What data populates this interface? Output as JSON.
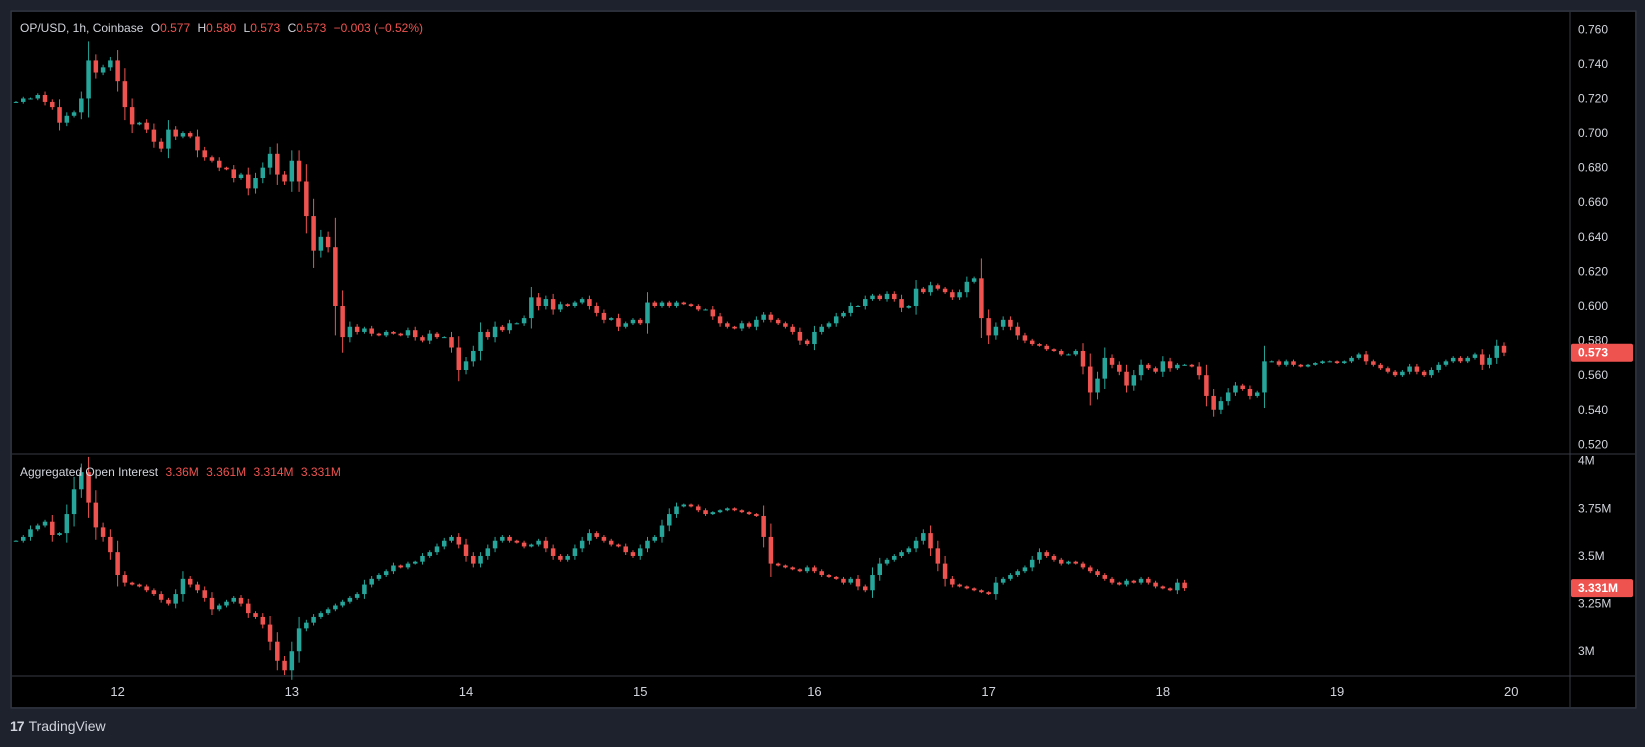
{
  "colors": {
    "up": "#26a69a",
    "down": "#ef5350",
    "text": "#d1d4dc",
    "bg": "#000000",
    "frame": "#1e222d",
    "grid": "#2a2e39"
  },
  "header": {
    "symbol": "OP/USD, 1h, Coinbase",
    "o_label": "O",
    "o_val": "0.577",
    "h_label": "H",
    "h_val": "0.580",
    "l_label": "L",
    "l_val": "0.573",
    "c_label": "C",
    "c_val": "0.573",
    "change": "−0.003 (−0.52%)"
  },
  "oi_header": {
    "title": "Aggregated Open Interest",
    "v1": "3.36M",
    "v2": "3.361M",
    "v3": "3.314M",
    "v4": "3.331M"
  },
  "brand": {
    "logo": "17",
    "name": "TradingView"
  },
  "chart_data": [
    {
      "type": "candlestick",
      "title": "OP/USD, 1h, Coinbase",
      "ylim": [
        0.515,
        0.77
      ],
      "y_ticks": [
        "0.760",
        "0.740",
        "0.720",
        "0.700",
        "0.680",
        "0.660",
        "0.640",
        "0.620",
        "0.600",
        "0.580",
        "0.560",
        "0.540",
        "0.520"
      ],
      "last_price_label": "0.573",
      "last_price": 0.573,
      "x_ticks": [
        "12",
        "13",
        "14",
        "15",
        "16",
        "17",
        "18",
        "19",
        "20"
      ],
      "close": [
        0.718,
        0.72,
        0.72,
        0.722,
        0.718,
        0.715,
        0.706,
        0.71,
        0.712,
        0.72,
        0.742,
        0.735,
        0.738,
        0.742,
        0.73,
        0.715,
        0.705,
        0.706,
        0.702,
        0.695,
        0.691,
        0.702,
        0.698,
        0.7,
        0.698,
        0.69,
        0.686,
        0.684,
        0.68,
        0.679,
        0.674,
        0.676,
        0.668,
        0.674,
        0.68,
        0.688,
        0.676,
        0.672,
        0.684,
        0.672,
        0.652,
        0.632,
        0.64,
        0.634,
        0.6,
        0.582,
        0.588,
        0.585,
        0.587,
        0.584,
        0.583,
        0.585,
        0.584,
        0.583,
        0.586,
        0.582,
        0.58,
        0.584,
        0.582,
        0.582,
        0.576,
        0.563,
        0.568,
        0.574,
        0.585,
        0.582,
        0.588,
        0.586,
        0.59,
        0.59,
        0.593,
        0.605,
        0.6,
        0.604,
        0.598,
        0.601,
        0.6,
        0.602,
        0.604,
        0.6,
        0.596,
        0.592,
        0.593,
        0.588,
        0.59,
        0.592,
        0.59,
        0.602,
        0.6,
        0.602,
        0.6,
        0.602,
        0.601,
        0.6,
        0.598,
        0.598,
        0.594,
        0.59,
        0.588,
        0.587,
        0.59,
        0.588,
        0.592,
        0.595,
        0.592,
        0.59,
        0.588,
        0.585,
        0.58,
        0.578,
        0.585,
        0.588,
        0.59,
        0.594,
        0.596,
        0.6,
        0.6,
        0.604,
        0.606,
        0.604,
        0.607,
        0.604,
        0.599,
        0.6,
        0.61,
        0.608,
        0.612,
        0.61,
        0.608,
        0.605,
        0.608,
        0.614,
        0.616,
        0.593,
        0.583,
        0.588,
        0.592,
        0.588,
        0.583,
        0.58,
        0.578,
        0.577,
        0.575,
        0.574,
        0.572,
        0.572,
        0.574,
        0.565,
        0.55,
        0.558,
        0.57,
        0.566,
        0.562,
        0.554,
        0.56,
        0.566,
        0.564,
        0.562,
        0.568,
        0.564,
        0.566,
        0.566,
        0.565,
        0.56,
        0.548,
        0.54,
        0.545,
        0.55,
        0.554,
        0.552,
        0.548,
        0.55,
        0.568,
        0.568,
        0.566,
        0.568,
        0.566,
        0.565,
        0.566,
        0.567,
        0.568,
        0.568,
        0.567,
        0.568,
        0.57,
        0.572,
        0.568,
        0.566,
        0.564,
        0.562,
        0.56,
        0.562,
        0.565,
        0.562,
        0.56,
        0.563,
        0.566,
        0.568,
        0.57,
        0.568,
        0.57,
        0.572,
        0.566,
        0.57,
        0.577,
        0.573
      ]
    },
    {
      "type": "candlestick",
      "title": "Aggregated Open Interest",
      "ylim": [
        2.87,
        4.03
      ],
      "y_ticks": [
        "4M",
        "3.75M",
        "3.5M",
        "3.25M",
        "3M"
      ],
      "last_value_label": "3.331M",
      "last_value": 3.331,
      "unit": "M",
      "close": [
        3.58,
        3.6,
        3.64,
        3.66,
        3.68,
        3.61,
        3.62,
        3.72,
        3.85,
        3.94,
        3.78,
        3.65,
        3.6,
        3.52,
        3.4,
        3.36,
        3.35,
        3.34,
        3.32,
        3.3,
        3.27,
        3.25,
        3.3,
        3.38,
        3.35,
        3.32,
        3.28,
        3.22,
        3.24,
        3.26,
        3.28,
        3.25,
        3.2,
        3.18,
        3.14,
        3.05,
        2.95,
        2.9,
        3.0,
        3.12,
        3.15,
        3.18,
        3.2,
        3.22,
        3.24,
        3.26,
        3.28,
        3.3,
        3.35,
        3.38,
        3.4,
        3.42,
        3.45,
        3.44,
        3.46,
        3.47,
        3.5,
        3.52,
        3.55,
        3.58,
        3.6,
        3.56,
        3.5,
        3.46,
        3.5,
        3.54,
        3.58,
        3.6,
        3.58,
        3.57,
        3.55,
        3.56,
        3.58,
        3.54,
        3.5,
        3.48,
        3.5,
        3.54,
        3.58,
        3.62,
        3.6,
        3.58,
        3.56,
        3.55,
        3.52,
        3.5,
        3.54,
        3.58,
        3.6,
        3.66,
        3.72,
        3.76,
        3.77,
        3.76,
        3.74,
        3.72,
        3.73,
        3.74,
        3.75,
        3.74,
        3.73,
        3.72,
        3.71,
        3.6,
        3.46,
        3.45,
        3.44,
        3.43,
        3.42,
        3.44,
        3.42,
        3.4,
        3.39,
        3.38,
        3.36,
        3.38,
        3.34,
        3.32,
        3.4,
        3.46,
        3.48,
        3.5,
        3.52,
        3.54,
        3.58,
        3.62,
        3.54,
        3.46,
        3.38,
        3.35,
        3.34,
        3.33,
        3.32,
        3.31,
        3.3,
        3.36,
        3.38,
        3.4,
        3.42,
        3.44,
        3.48,
        3.52,
        3.5,
        3.48,
        3.46,
        3.47,
        3.46,
        3.44,
        3.42,
        3.4,
        3.38,
        3.36,
        3.35,
        3.37,
        3.36,
        3.38,
        3.36,
        3.34,
        3.33,
        3.32,
        3.36,
        3.331
      ]
    }
  ]
}
